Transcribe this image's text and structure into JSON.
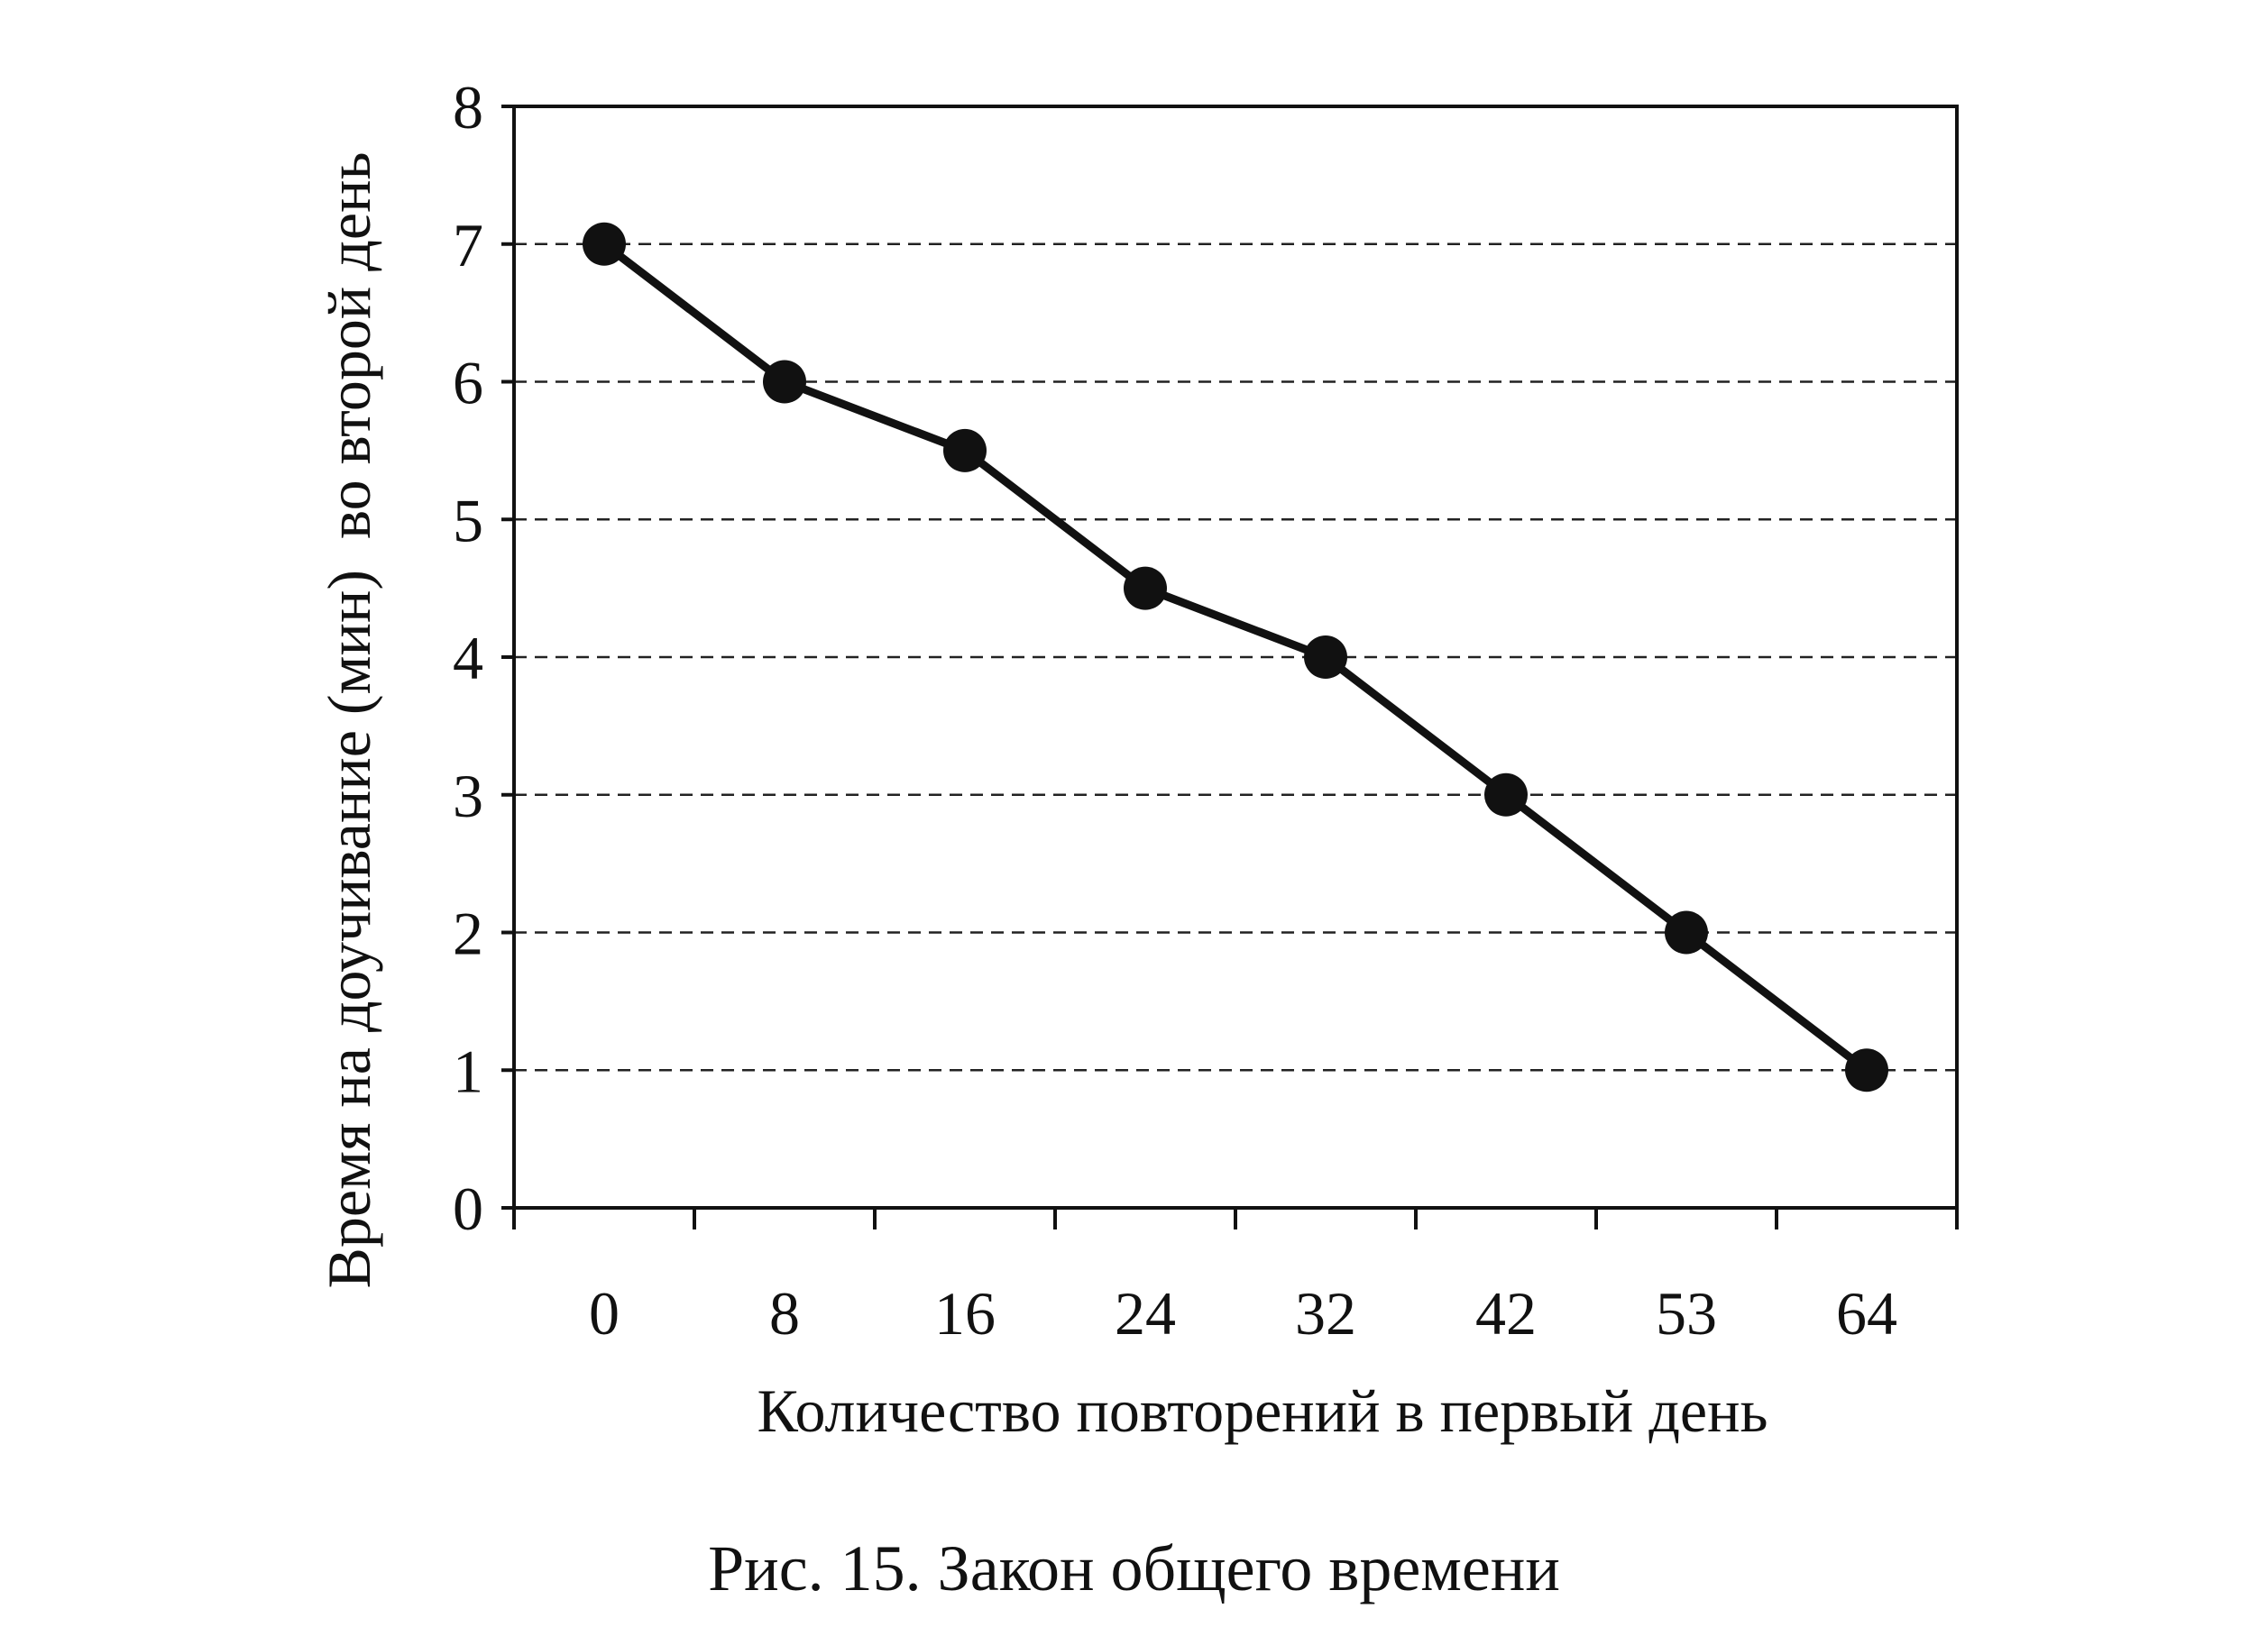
{
  "chart_data": {
    "type": "line",
    "categories": [
      "0",
      "8",
      "16",
      "24",
      "32",
      "42",
      "53",
      "64"
    ],
    "series": [
      {
        "values": [
          7.0,
          6.0,
          5.5,
          4.5,
          4.0,
          3.0,
          2.0,
          1.0
        ]
      }
    ],
    "xlabel": "Количество повторений в первый день",
    "ylabel": "Время на доучивание (мин)  во второй день",
    "ylim": [
      0,
      8
    ],
    "yticks": [
      "0",
      "1",
      "2",
      "3",
      "4",
      "5",
      "6",
      "7",
      "8"
    ],
    "grid": "horizontal dashed",
    "legend": "none",
    "colors": {
      "line": "#111111",
      "markers": "#111111",
      "grid": "#222222"
    }
  },
  "caption": "Рис. 15. Закон общего времени"
}
